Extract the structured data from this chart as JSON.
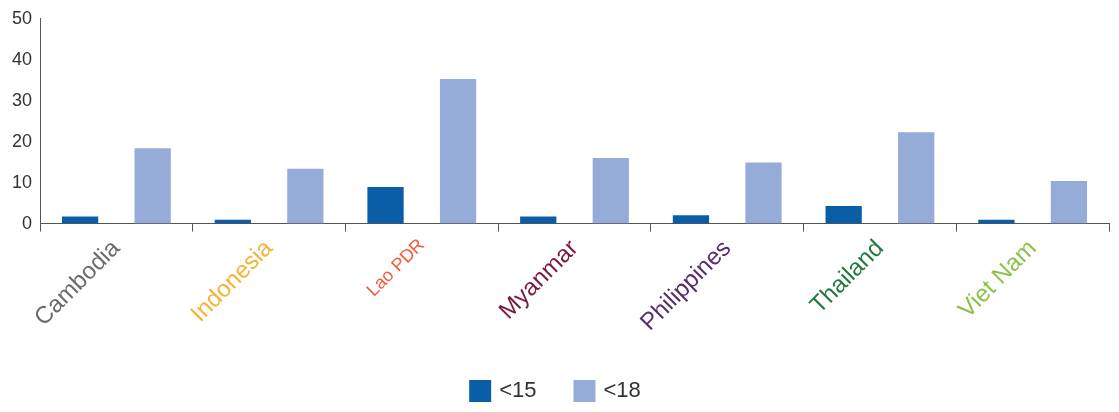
{
  "chart_data": {
    "type": "bar",
    "categories": [
      "Cambodia",
      "Indonesia",
      "Lao PDR",
      "Myanmar",
      "Philippines",
      "Thailand",
      "Viet Nam"
    ],
    "series": [
      {
        "name": "<15",
        "color": "#0a5ea8",
        "values": [
          1.7,
          0.9,
          8.9,
          1.7,
          2.0,
          4.3,
          0.9
        ]
      },
      {
        "name": "<18",
        "color": "#96acd8",
        "values": [
          18.4,
          13.4,
          35.3,
          16.0,
          14.9,
          22.3,
          10.4
        ]
      }
    ],
    "ylim": [
      0,
      50
    ],
    "yticks": [
      0,
      10,
      20,
      30,
      40,
      50
    ],
    "grid": false,
    "legend": "bottom"
  }
}
